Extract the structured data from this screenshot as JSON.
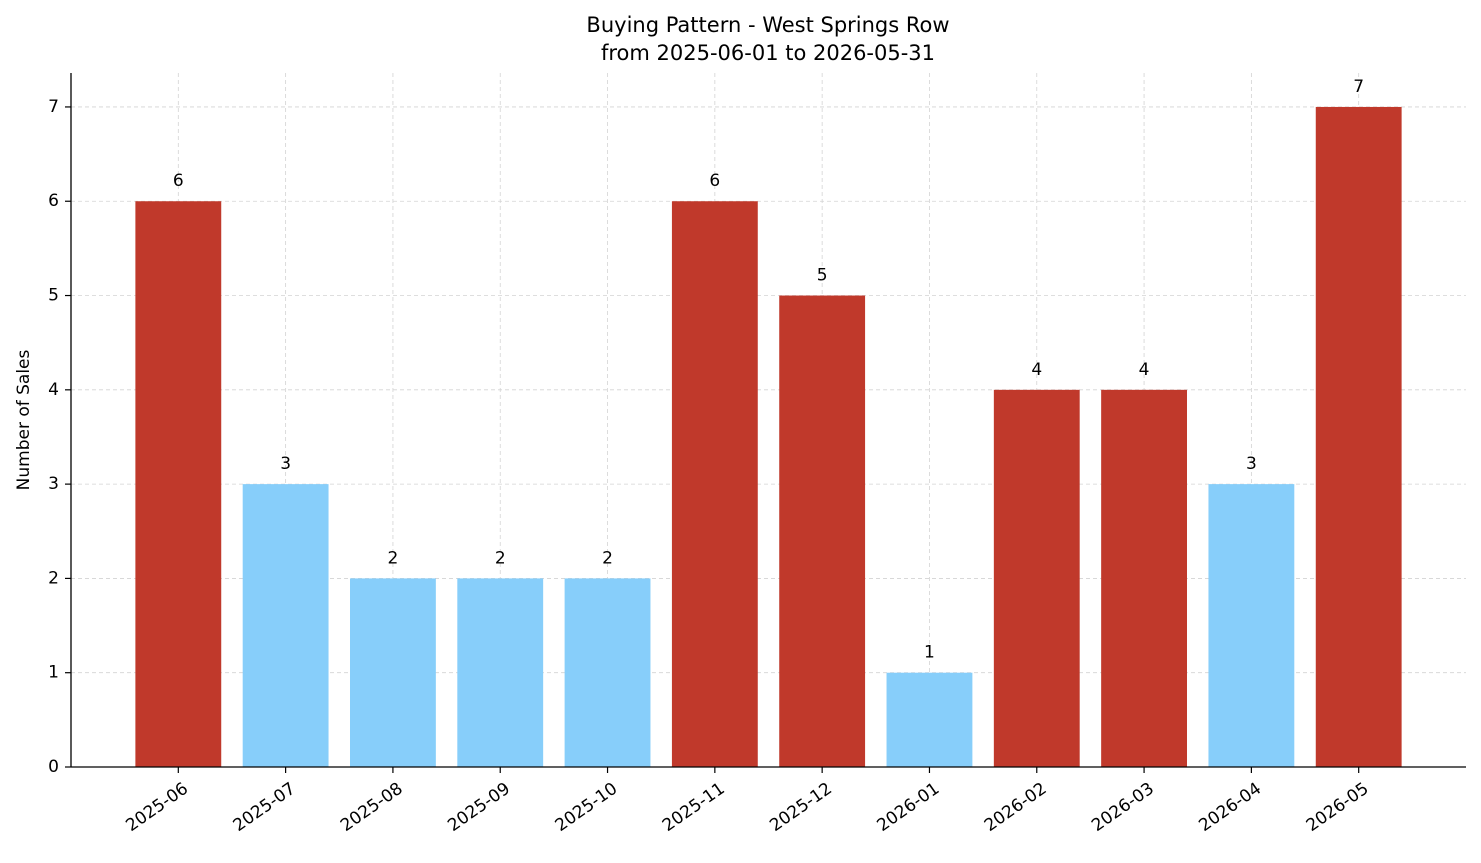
{
  "chart_data": {
    "type": "bar",
    "title": "Buying Pattern - West Springs Row",
    "subtitle": "from 2025-06-01 to 2026-05-31",
    "y_label": "Number of Sales",
    "categories": [
      "2025-06",
      "2025-07",
      "2025-08",
      "2025-09",
      "2025-10",
      "2025-11",
      "2025-12",
      "2026-01",
      "2026-02",
      "2026-03",
      "2026-04",
      "2026-05"
    ],
    "values": [
      6,
      3,
      2,
      2,
      2,
      6,
      5,
      1,
      4,
      4,
      3,
      7
    ],
    "colors": [
      "#c0392b",
      "#87cefa",
      "#87cefa",
      "#87cefa",
      "#87cefa",
      "#c0392b",
      "#c0392b",
      "#87cefa",
      "#c0392b",
      "#c0392b",
      "#87cefa",
      "#c0392b"
    ],
    "ylim": [
      0,
      7.36
    ],
    "yticks": [
      0,
      1,
      2,
      3,
      4,
      5,
      6,
      7
    ],
    "grid": true
  }
}
